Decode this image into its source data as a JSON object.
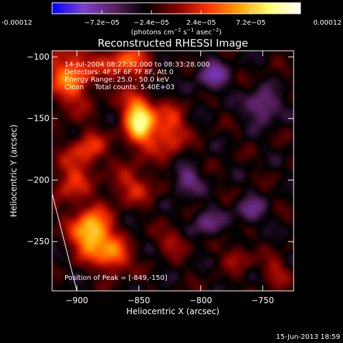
{
  "chart_data": {
    "type": "heatmap",
    "title": "Reconstructed RHESSI Image",
    "xlabel": "Heliocentric X (arcsec)",
    "ylabel": "Heliocentric Y (arcsec)",
    "xlim": [
      -920,
      -725
    ],
    "ylim": [
      -290,
      -95
    ],
    "x_ticks": [
      -900,
      -850,
      -800,
      -750
    ],
    "y_ticks": [
      -100,
      -150,
      -200,
      -250
    ],
    "colorbar": {
      "range": [
        -0.00012,
        0.00012
      ],
      "tick_labels": [
        "-0.00012",
        "−7.2e−05",
        "−2.4e−05",
        "2.4e−05",
        "7.2e−05",
        "0.00012"
      ],
      "tick_values": [
        -0.00012,
        -7.2e-05,
        -2.4e-05,
        2.4e-05,
        7.2e-05,
        0.00012
      ],
      "label_main": "(photons cm",
      "label_sup1": "−2",
      "label_mid": " s",
      "label_sup2": "−1",
      "label_end": " asec",
      "label_sup3": "−2",
      "label_close": ")",
      "colors": [
        "#0000ff",
        "#7f3fd0",
        "#5a2060",
        "#000000",
        "#800000",
        "#ff3000",
        "#ffa000",
        "#ffff70",
        "#ffffff"
      ]
    },
    "annotations": [
      "14-Jul-2004 08:27:32.000 to 08:33:28.000",
      "Detectors: 4F 5F 6F 7F 8F, Att 0",
      "Energy Range: 25.0 - 50.0 keV",
      "Clean     Total counts: 5.40E+03"
    ],
    "peak_label": "Position of Peak = [-849,-150]",
    "peak": [
      -849,
      -150
    ],
    "sources": [
      {
        "x": -849,
        "y": -150,
        "amp": 1.0,
        "sx": 9,
        "sy": 16
      },
      {
        "x": -888,
        "y": -243,
        "amp": 0.95,
        "sx": 11,
        "sy": 13
      },
      {
        "x": -870,
        "y": -262,
        "amp": 0.6,
        "sx": 9,
        "sy": 9
      },
      {
        "x": -905,
        "y": -115,
        "amp": 0.6,
        "sx": 13,
        "sy": 18
      },
      {
        "x": -860,
        "y": -105,
        "amp": 0.55,
        "sx": 14,
        "sy": 9
      },
      {
        "x": -825,
        "y": -160,
        "amp": 0.5,
        "sx": 9,
        "sy": 14
      },
      {
        "x": -890,
        "y": -175,
        "amp": 0.45,
        "sx": 9,
        "sy": 10
      },
      {
        "x": -905,
        "y": -200,
        "amp": 0.4,
        "sx": 10,
        "sy": 14
      },
      {
        "x": -855,
        "y": -205,
        "amp": 0.35,
        "sx": 14,
        "sy": 10
      },
      {
        "x": -822,
        "y": -250,
        "amp": 0.3,
        "sx": 9,
        "sy": 7
      },
      {
        "x": -770,
        "y": -262,
        "amp": 0.3,
        "sx": 8,
        "sy": 7
      },
      {
        "x": -740,
        "y": -275,
        "amp": 0.3,
        "sx": 8,
        "sy": 8
      },
      {
        "x": -750,
        "y": -140,
        "amp": -0.45,
        "sx": 9,
        "sy": 9
      },
      {
        "x": -790,
        "y": -115,
        "amp": -0.4,
        "sx": 9,
        "sy": 9
      },
      {
        "x": -812,
        "y": -200,
        "amp": -0.4,
        "sx": 8,
        "sy": 8
      },
      {
        "x": -760,
        "y": -225,
        "amp": -0.35,
        "sx": 8,
        "sy": 8
      },
      {
        "x": -840,
        "y": -125,
        "amp": -0.3,
        "sx": 8,
        "sy": 8
      },
      {
        "x": -795,
        "y": -235,
        "amp": -0.35,
        "sx": 8,
        "sy": 8
      }
    ]
  },
  "footer": {
    "date": "15-Jun-2013 18:59"
  }
}
